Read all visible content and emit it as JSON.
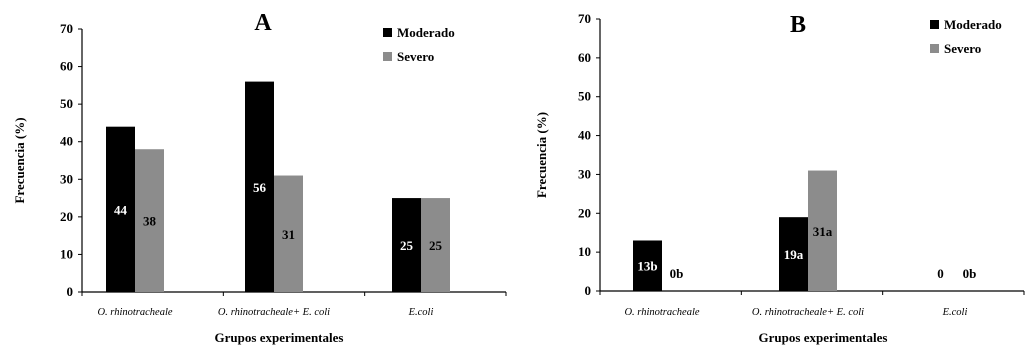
{
  "chart_data": [
    {
      "type": "bar",
      "title": "A",
      "categories": [
        "O. rhinotracheale",
        "O. rhinotracheale+ E. coli",
        "E.coli"
      ],
      "series": [
        {
          "name": "Moderado",
          "values": [
            44,
            56,
            25
          ],
          "labels": [
            "44",
            "56",
            "25"
          ],
          "color": "#000000"
        },
        {
          "name": "Severo",
          "values": [
            38,
            31,
            25
          ],
          "labels": [
            "38",
            "31",
            "25"
          ],
          "color": "#8c8c8c"
        }
      ],
      "xlabel": "Grupos experimentales",
      "ylabel": "Frecuencia (%)",
      "ylim": [
        0,
        70
      ],
      "yticks": [
        "0",
        "10",
        "20",
        "30",
        "40",
        "50",
        "60",
        "70"
      ],
      "grid": false,
      "legend": "top-right"
    },
    {
      "type": "bar",
      "title": "B",
      "categories": [
        "O. rhinotracheale",
        "O. rhinotracheale+ E. coli",
        "E.coli"
      ],
      "series": [
        {
          "name": "Moderado",
          "values": [
            13,
            19,
            0
          ],
          "labels": [
            "13b",
            "19a",
            "0"
          ],
          "color": "#000000"
        },
        {
          "name": "Severo",
          "values": [
            0,
            31,
            0
          ],
          "labels": [
            "0b",
            "31a",
            "0b"
          ],
          "color": "#8c8c8c"
        }
      ],
      "xlabel": "Grupos experimentales",
      "ylabel": "Frecuencia (%)",
      "ylim": [
        0,
        70
      ],
      "yticks": [
        "0",
        "10",
        "20",
        "30",
        "40",
        "50",
        "60",
        "70"
      ],
      "grid": false,
      "legend": "top-right"
    }
  ]
}
